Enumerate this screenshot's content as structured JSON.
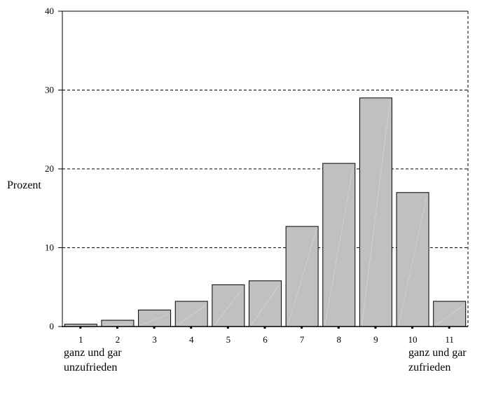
{
  "chart_data": {
    "type": "bar",
    "categories": [
      "1",
      "2",
      "3",
      "4",
      "5",
      "6",
      "7",
      "8",
      "9",
      "10",
      "11"
    ],
    "values": [
      0.3,
      0.8,
      2.1,
      3.2,
      5.3,
      5.8,
      12.7,
      20.7,
      29.0,
      17.0,
      3.2
    ],
    "ylabel": "Prozent",
    "xlabel": "",
    "ylim": [
      0,
      40
    ],
    "yticks": [
      0,
      10,
      20,
      30,
      40
    ],
    "grid": "dashed horizontal",
    "bar_color": "#c0c0c0",
    "bar_stroke": "#000000",
    "low_end_label": [
      "ganz und gar",
      "unzufrieden"
    ],
    "high_end_label": [
      "ganz und gar",
      "zufrieden"
    ]
  }
}
